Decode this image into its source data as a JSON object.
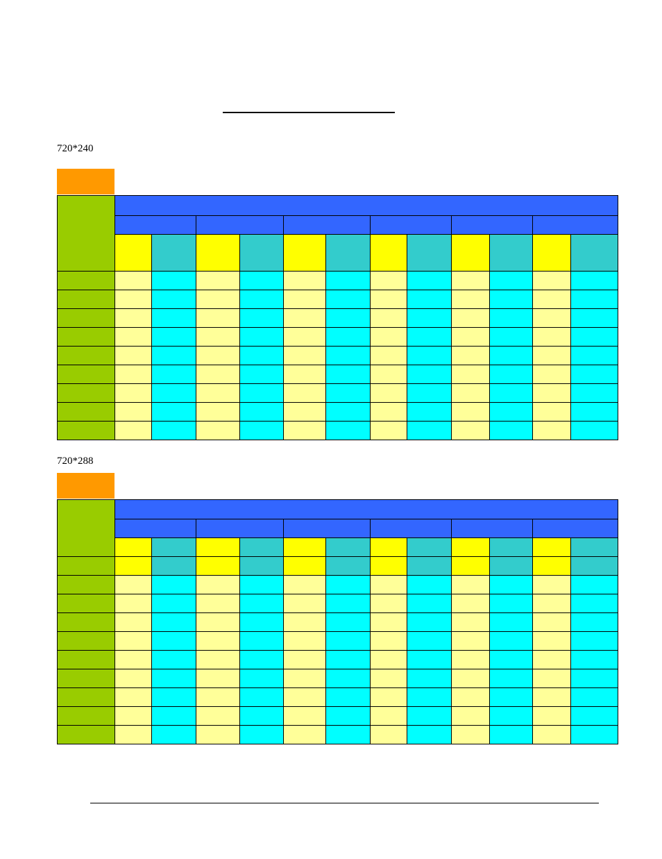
{
  "page": {
    "sections": [
      {
        "label": "720*240"
      },
      {
        "label": "720*288"
      }
    ]
  },
  "colors": {
    "orange_tab": "#ff9900",
    "label_column": "#99cc00",
    "header_blue": "#3366ff",
    "yellow_header": "#ffff00",
    "teal_header": "#33cccc",
    "yellow_cell": "#ffff99",
    "cyan_cell": "#00ffff"
  },
  "table": {
    "groups": 6,
    "columns_per_group": 2
  }
}
